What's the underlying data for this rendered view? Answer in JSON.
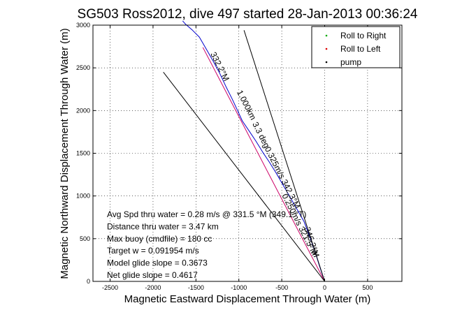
{
  "chart_data": {
    "type": "line",
    "title": "SG503 Ross2012, dive 497 started 28-Jan-2013 00:36:24",
    "xlabel": "Magnetic Eastward Displacement Through Water (m)",
    "ylabel": "Magnetic Northward Displacement Through Water (m)",
    "xlim": [
      -2700,
      900
    ],
    "ylim": [
      0,
      3000
    ],
    "xticks": [
      -2500,
      -2000,
      -1500,
      -1000,
      -500,
      0,
      500
    ],
    "yticks": [
      0,
      500,
      1000,
      1500,
      2000,
      2500,
      3000
    ],
    "grid": true,
    "legend_position": "top-right",
    "legend": [
      {
        "label": "Roll to Right",
        "color": "#00aa00",
        "marker": "dot"
      },
      {
        "label": "Roll to Left",
        "color": "#dd0000",
        "marker": "dot"
      },
      {
        "label": "pump",
        "color": "#000000",
        "marker": "dot"
      }
    ],
    "series": [
      {
        "color": "#0000cc",
        "style": "solid",
        "x": [
          0,
          -60,
          -120,
          -180,
          -240,
          -320,
          -400,
          -480,
          -560,
          -640,
          -720,
          -800,
          -880,
          -960,
          -1020,
          -1080,
          -1150,
          -1220,
          -1300,
          -1380,
          -1460,
          -1540,
          -1620,
          -1655
        ],
        "y": [
          0,
          180,
          370,
          540,
          700,
          840,
          980,
          1120,
          1260,
          1390,
          1510,
          1640,
          1760,
          1880,
          2010,
          2140,
          2280,
          2430,
          2580,
          2720,
          2860,
          2940,
          3010,
          3050
        ]
      },
      {
        "color": "#cc0066",
        "style": "solid",
        "x": [
          0,
          -1420
        ],
        "y": [
          0,
          2740
        ]
      },
      {
        "color": "#000000",
        "style": "solid",
        "x": [
          0,
          -1880
        ],
        "y": [
          0,
          2450
        ]
      },
      {
        "color": "#000000",
        "style": "solid",
        "x": [
          0,
          -940
        ],
        "y": [
          0,
          2940
        ]
      }
    ],
    "rotated_labels": [
      {
        "text": "332.2°M",
        "x": -1250,
        "y": 2500,
        "angle": 63
      },
      {
        "text": "1.000km",
        "x": -940,
        "y": 2050,
        "angle": 63
      },
      {
        "text": "3.3 deg",
        "x": -770,
        "y": 1700,
        "angle": 63
      },
      {
        "text": "0.325m/s 342.3°M",
        "x": -520,
        "y": 1200,
        "angle": 63
      },
      {
        "text": "0.250m/s 321.5°M",
        "x": -320,
        "y": 650,
        "angle": 63
      },
      {
        "text": "346.2°M",
        "x": -180,
        "y": 450,
        "angle": 72
      }
    ],
    "annotations": [
      "Avg Spd thru water =  0.28 m/s @ 331.5 °M (349.1 °T)",
      "Distance thru water =  3.47 km",
      "Max buoy (cmdfile) = 180 cc",
      "Target w = 0.091954 m/s",
      "Model glide slope = 0.3673",
      "Net glide slope = 0.4617"
    ]
  }
}
